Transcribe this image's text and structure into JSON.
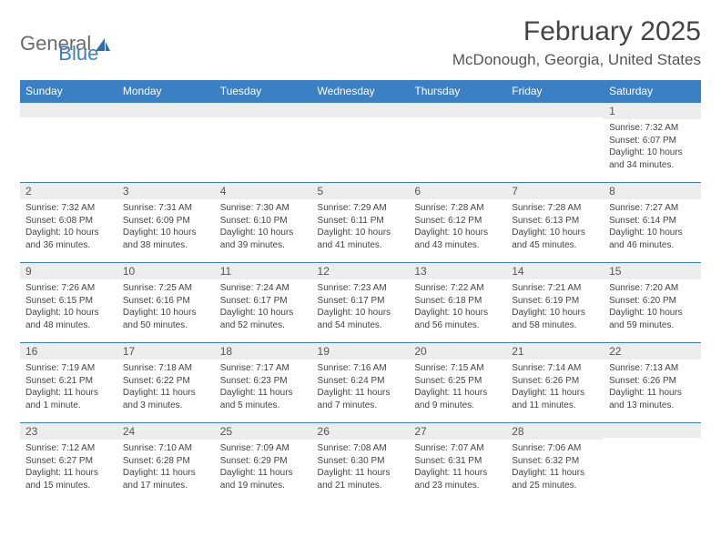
{
  "logo": {
    "part1": "General",
    "part2": "Blue"
  },
  "title": "February 2025",
  "location": "McDonough, Georgia, United States",
  "colors": {
    "primary": "#3b7fc4",
    "header_text": "#ffffff",
    "daynum_bg": "#ededed",
    "body_text": "#444444",
    "background": "#ffffff"
  },
  "day_headers": [
    "Sunday",
    "Monday",
    "Tuesday",
    "Wednesday",
    "Thursday",
    "Friday",
    "Saturday"
  ],
  "weeks": [
    [
      {
        "num": "",
        "sunrise": "",
        "sunset": "",
        "daylight": ""
      },
      {
        "num": "",
        "sunrise": "",
        "sunset": "",
        "daylight": ""
      },
      {
        "num": "",
        "sunrise": "",
        "sunset": "",
        "daylight": ""
      },
      {
        "num": "",
        "sunrise": "",
        "sunset": "",
        "daylight": ""
      },
      {
        "num": "",
        "sunrise": "",
        "sunset": "",
        "daylight": ""
      },
      {
        "num": "",
        "sunrise": "",
        "sunset": "",
        "daylight": ""
      },
      {
        "num": "1",
        "sunrise": "Sunrise: 7:32 AM",
        "sunset": "Sunset: 6:07 PM",
        "daylight": "Daylight: 10 hours and 34 minutes."
      }
    ],
    [
      {
        "num": "2",
        "sunrise": "Sunrise: 7:32 AM",
        "sunset": "Sunset: 6:08 PM",
        "daylight": "Daylight: 10 hours and 36 minutes."
      },
      {
        "num": "3",
        "sunrise": "Sunrise: 7:31 AM",
        "sunset": "Sunset: 6:09 PM",
        "daylight": "Daylight: 10 hours and 38 minutes."
      },
      {
        "num": "4",
        "sunrise": "Sunrise: 7:30 AM",
        "sunset": "Sunset: 6:10 PM",
        "daylight": "Daylight: 10 hours and 39 minutes."
      },
      {
        "num": "5",
        "sunrise": "Sunrise: 7:29 AM",
        "sunset": "Sunset: 6:11 PM",
        "daylight": "Daylight: 10 hours and 41 minutes."
      },
      {
        "num": "6",
        "sunrise": "Sunrise: 7:28 AM",
        "sunset": "Sunset: 6:12 PM",
        "daylight": "Daylight: 10 hours and 43 minutes."
      },
      {
        "num": "7",
        "sunrise": "Sunrise: 7:28 AM",
        "sunset": "Sunset: 6:13 PM",
        "daylight": "Daylight: 10 hours and 45 minutes."
      },
      {
        "num": "8",
        "sunrise": "Sunrise: 7:27 AM",
        "sunset": "Sunset: 6:14 PM",
        "daylight": "Daylight: 10 hours and 46 minutes."
      }
    ],
    [
      {
        "num": "9",
        "sunrise": "Sunrise: 7:26 AM",
        "sunset": "Sunset: 6:15 PM",
        "daylight": "Daylight: 10 hours and 48 minutes."
      },
      {
        "num": "10",
        "sunrise": "Sunrise: 7:25 AM",
        "sunset": "Sunset: 6:16 PM",
        "daylight": "Daylight: 10 hours and 50 minutes."
      },
      {
        "num": "11",
        "sunrise": "Sunrise: 7:24 AM",
        "sunset": "Sunset: 6:17 PM",
        "daylight": "Daylight: 10 hours and 52 minutes."
      },
      {
        "num": "12",
        "sunrise": "Sunrise: 7:23 AM",
        "sunset": "Sunset: 6:17 PM",
        "daylight": "Daylight: 10 hours and 54 minutes."
      },
      {
        "num": "13",
        "sunrise": "Sunrise: 7:22 AM",
        "sunset": "Sunset: 6:18 PM",
        "daylight": "Daylight: 10 hours and 56 minutes."
      },
      {
        "num": "14",
        "sunrise": "Sunrise: 7:21 AM",
        "sunset": "Sunset: 6:19 PM",
        "daylight": "Daylight: 10 hours and 58 minutes."
      },
      {
        "num": "15",
        "sunrise": "Sunrise: 7:20 AM",
        "sunset": "Sunset: 6:20 PM",
        "daylight": "Daylight: 10 hours and 59 minutes."
      }
    ],
    [
      {
        "num": "16",
        "sunrise": "Sunrise: 7:19 AM",
        "sunset": "Sunset: 6:21 PM",
        "daylight": "Daylight: 11 hours and 1 minute."
      },
      {
        "num": "17",
        "sunrise": "Sunrise: 7:18 AM",
        "sunset": "Sunset: 6:22 PM",
        "daylight": "Daylight: 11 hours and 3 minutes."
      },
      {
        "num": "18",
        "sunrise": "Sunrise: 7:17 AM",
        "sunset": "Sunset: 6:23 PM",
        "daylight": "Daylight: 11 hours and 5 minutes."
      },
      {
        "num": "19",
        "sunrise": "Sunrise: 7:16 AM",
        "sunset": "Sunset: 6:24 PM",
        "daylight": "Daylight: 11 hours and 7 minutes."
      },
      {
        "num": "20",
        "sunrise": "Sunrise: 7:15 AM",
        "sunset": "Sunset: 6:25 PM",
        "daylight": "Daylight: 11 hours and 9 minutes."
      },
      {
        "num": "21",
        "sunrise": "Sunrise: 7:14 AM",
        "sunset": "Sunset: 6:26 PM",
        "daylight": "Daylight: 11 hours and 11 minutes."
      },
      {
        "num": "22",
        "sunrise": "Sunrise: 7:13 AM",
        "sunset": "Sunset: 6:26 PM",
        "daylight": "Daylight: 11 hours and 13 minutes."
      }
    ],
    [
      {
        "num": "23",
        "sunrise": "Sunrise: 7:12 AM",
        "sunset": "Sunset: 6:27 PM",
        "daylight": "Daylight: 11 hours and 15 minutes."
      },
      {
        "num": "24",
        "sunrise": "Sunrise: 7:10 AM",
        "sunset": "Sunset: 6:28 PM",
        "daylight": "Daylight: 11 hours and 17 minutes."
      },
      {
        "num": "25",
        "sunrise": "Sunrise: 7:09 AM",
        "sunset": "Sunset: 6:29 PM",
        "daylight": "Daylight: 11 hours and 19 minutes."
      },
      {
        "num": "26",
        "sunrise": "Sunrise: 7:08 AM",
        "sunset": "Sunset: 6:30 PM",
        "daylight": "Daylight: 11 hours and 21 minutes."
      },
      {
        "num": "27",
        "sunrise": "Sunrise: 7:07 AM",
        "sunset": "Sunset: 6:31 PM",
        "daylight": "Daylight: 11 hours and 23 minutes."
      },
      {
        "num": "28",
        "sunrise": "Sunrise: 7:06 AM",
        "sunset": "Sunset: 6:32 PM",
        "daylight": "Daylight: 11 hours and 25 minutes."
      },
      {
        "num": "",
        "sunrise": "",
        "sunset": "",
        "daylight": ""
      }
    ]
  ]
}
